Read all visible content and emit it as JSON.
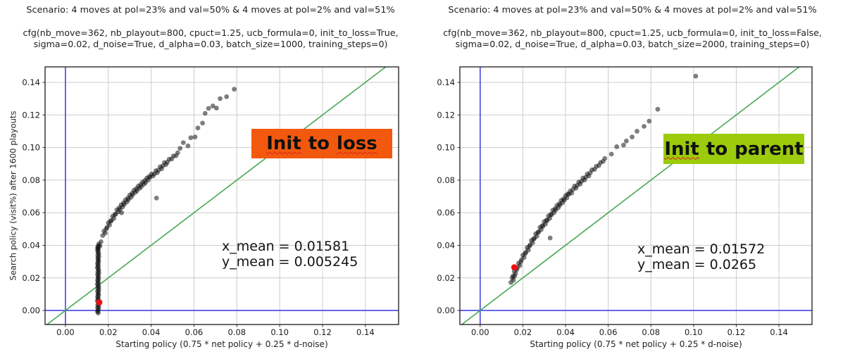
{
  "colors": {
    "background": "#ffffff",
    "grid": "#cccccc",
    "frame": "#2a2a2a",
    "axis_zero_blue": "#4545e0",
    "identity_green": "#46aa50",
    "point_black": "#141414",
    "highlight_red": "#f20d0d",
    "annotation_orange": "#f2590e",
    "annotation_green": "#9bcb0a",
    "squiggle_red": "#e02020"
  },
  "chart_data": [
    {
      "type": "scatter",
      "title": "Scenario: 4 moves at pol=23% and val=50% & 4 moves at pol=2% and val=51%",
      "cfg_lines": [
        "cfg(nb_move=362, nb_playout=800, cpuct=1.25, ucb_formula=0, init_to_loss=True,",
        "sigma=0.02, d_noise=True, d_alpha=0.03, batch_size=1000, training_steps=0)"
      ],
      "xlabel": "Starting policy (0.75 * net policy + 0.25 * d-noise)",
      "ylabel": "Search policy (visit%) after 1600 playouts",
      "xlim": [
        -0.0095,
        0.1555
      ],
      "ylim": [
        -0.0086,
        0.1495
      ],
      "tick_values": [
        0.0,
        0.02,
        0.04,
        0.06,
        0.08,
        0.1,
        0.12,
        0.14
      ],
      "tick_labels": [
        "0.00",
        "0.02",
        "0.04",
        "0.06",
        "0.08",
        "0.10",
        "0.12",
        "0.14"
      ],
      "grid": true,
      "zero_lines": true,
      "identity_line": true,
      "annotation": {
        "bg": "#f2590e",
        "words": [
          {
            "t": "Init",
            "squiggle": true
          },
          {
            "t": "to",
            "squiggle": false
          },
          {
            "t": "loss",
            "squiggle": true
          }
        ]
      },
      "stats_lines": [
        "x_mean = 0.01581",
        "y_mean = 0.005245"
      ],
      "x_mean": 0.01581,
      "y_mean": 0.005245,
      "red_point": [
        0.0158,
        0.005
      ],
      "points": [
        [
          0.0152,
          0.0
        ],
        [
          0.0154,
          0.0009
        ],
        [
          0.015,
          0.0017
        ],
        [
          0.0156,
          0.0026
        ],
        [
          0.0151,
          0.0034
        ],
        [
          0.0155,
          0.0043
        ],
        [
          0.0153,
          0.0051
        ],
        [
          0.0149,
          0.006
        ],
        [
          0.0154,
          0.0068
        ],
        [
          0.0152,
          0.0077
        ],
        [
          0.015,
          0.0085
        ],
        [
          0.0155,
          0.0094
        ],
        [
          0.0152,
          0.0102
        ],
        [
          0.0154,
          0.0111
        ],
        [
          0.015,
          0.0119
        ],
        [
          0.0156,
          0.0128
        ],
        [
          0.0151,
          0.0136
        ],
        [
          0.0155,
          0.0145
        ],
        [
          0.0153,
          0.0153
        ],
        [
          0.0149,
          0.0162
        ],
        [
          0.0154,
          0.017
        ],
        [
          0.0152,
          0.0179
        ],
        [
          0.015,
          0.0187
        ],
        [
          0.0155,
          0.0196
        ],
        [
          0.0152,
          0.0204
        ],
        [
          0.0154,
          0.0213
        ],
        [
          0.015,
          0.0221
        ],
        [
          0.0156,
          0.023
        ],
        [
          0.0151,
          0.0238
        ],
        [
          0.0155,
          0.0247
        ],
        [
          0.0153,
          0.0255
        ],
        [
          0.0149,
          0.0264
        ],
        [
          0.0154,
          0.0272
        ],
        [
          0.0152,
          0.0281
        ],
        [
          0.015,
          0.0289
        ],
        [
          0.0155,
          0.0298
        ],
        [
          0.0152,
          0.0306
        ],
        [
          0.0154,
          0.0315
        ],
        [
          0.0151,
          0.0323
        ],
        [
          0.0156,
          0.0332
        ],
        [
          0.0151,
          0.034
        ],
        [
          0.0155,
          0.0349
        ],
        [
          0.0153,
          0.0357
        ],
        [
          0.015,
          0.0366
        ],
        [
          0.0154,
          0.0374
        ],
        [
          0.0152,
          0.0383
        ],
        [
          0.0151,
          0.0391
        ],
        [
          0.0155,
          0.0399
        ],
        [
          0.0153,
          -0.0015
        ],
        [
          0.015,
          -0.0007
        ],
        [
          0.015,
          0.038
        ],
        [
          0.0156,
          0.0408
        ],
        [
          0.0161,
          0.0395
        ],
        [
          0.0166,
          0.0422
        ],
        [
          0.0174,
          0.046
        ],
        [
          0.018,
          0.0488
        ],
        [
          0.0186,
          0.0475
        ],
        [
          0.0191,
          0.0502
        ],
        [
          0.0194,
          0.051
        ],
        [
          0.02,
          0.0538
        ],
        [
          0.0206,
          0.0525
        ],
        [
          0.0211,
          0.055
        ],
        [
          0.0214,
          0.055
        ],
        [
          0.022,
          0.0578
        ],
        [
          0.0226,
          0.0565
        ],
        [
          0.0231,
          0.059
        ],
        [
          0.0234,
          0.059
        ],
        [
          0.024,
          0.0618
        ],
        [
          0.0246,
          0.0605
        ],
        [
          0.0251,
          0.063
        ],
        [
          0.0254,
          0.062
        ],
        [
          0.026,
          0.0648
        ],
        [
          0.0266,
          0.0635
        ],
        [
          0.0271,
          0.066
        ],
        [
          0.0274,
          0.065
        ],
        [
          0.028,
          0.0678
        ],
        [
          0.0286,
          0.0665
        ],
        [
          0.0291,
          0.069
        ],
        [
          0.0294,
          0.068
        ],
        [
          0.03,
          0.0708
        ],
        [
          0.0306,
          0.0695
        ],
        [
          0.0311,
          0.072
        ],
        [
          0.0314,
          0.071
        ],
        [
          0.032,
          0.0738
        ],
        [
          0.0326,
          0.0725
        ],
        [
          0.0331,
          0.0748
        ],
        [
          0.0334,
          0.0735
        ],
        [
          0.034,
          0.0763
        ],
        [
          0.0346,
          0.075
        ],
        [
          0.0351,
          0.0773
        ],
        [
          0.0354,
          0.076
        ],
        [
          0.036,
          0.0788
        ],
        [
          0.0366,
          0.0775
        ],
        [
          0.0371,
          0.0798
        ],
        [
          0.0374,
          0.0785
        ],
        [
          0.038,
          0.0813
        ],
        [
          0.0386,
          0.08
        ],
        [
          0.0391,
          0.0822
        ],
        [
          0.0395,
          0.0818
        ],
        [
          0.0402,
          0.0838
        ],
        [
          0.0409,
          0.0826
        ],
        [
          0.0415,
          0.0838
        ],
        [
          0.0422,
          0.0858
        ],
        [
          0.0429,
          0.0846
        ],
        [
          0.0435,
          0.0862
        ],
        [
          0.0442,
          0.0882
        ],
        [
          0.0449,
          0.087
        ],
        [
          0.0455,
          0.0888
        ],
        [
          0.0462,
          0.0908
        ],
        [
          0.0469,
          0.0895
        ],
        [
          0.0476,
          0.091
        ],
        [
          0.0484,
          0.0928
        ],
        [
          0.0496,
          0.093
        ],
        [
          0.0504,
          0.0948
        ],
        [
          0.0516,
          0.095
        ],
        [
          0.0524,
          0.0968
        ],
        [
          0.0535,
          0.0995
        ],
        [
          0.055,
          0.103
        ],
        [
          0.0572,
          0.101
        ],
        [
          0.0585,
          0.106
        ],
        [
          0.0605,
          0.1065
        ],
        [
          0.0618,
          0.112
        ],
        [
          0.064,
          0.115
        ],
        [
          0.0652,
          0.121
        ],
        [
          0.0668,
          0.124
        ],
        [
          0.0688,
          0.1255
        ],
        [
          0.0705,
          0.1242
        ],
        [
          0.0722,
          0.13
        ],
        [
          0.0752,
          0.1312
        ],
        [
          0.0788,
          0.1358
        ],
        [
          0.0425,
          0.069
        ],
        [
          0.0262,
          0.06
        ]
      ]
    },
    {
      "type": "scatter",
      "title": "Scenario: 4 moves at pol=23% and val=50% & 4 moves at pol=2% and val=51%",
      "cfg_lines": [
        "cfg(nb_move=362, nb_playout=800, cpuct=1.25, ucb_formula=0, init_to_loss=False,",
        "sigma=0.02, d_noise=True, d_alpha=0.03, batch_size=2000, training_steps=0)"
      ],
      "xlabel": "Starting policy (0.75 * net policy + 0.25 * d-noise)",
      "ylabel": "Search policy (visit%) after 1600 playouts",
      "xlim": [
        -0.0095,
        0.1555
      ],
      "ylim": [
        -0.0086,
        0.1495
      ],
      "tick_values": [
        0.0,
        0.02,
        0.04,
        0.06,
        0.08,
        0.1,
        0.12,
        0.14
      ],
      "tick_labels": [
        "0.00",
        "0.02",
        "0.04",
        "0.06",
        "0.08",
        "0.10",
        "0.12",
        "0.14"
      ],
      "grid": true,
      "zero_lines": true,
      "identity_line": true,
      "annotation": {
        "bg": "#9bcb0a",
        "words": [
          {
            "t": "Init",
            "squiggle": true
          },
          {
            "t": "to",
            "squiggle": false
          },
          {
            "t": "parent",
            "squiggle": false
          }
        ]
      },
      "stats_lines": [
        "x_mean = 0.01572",
        "y_mean = 0.0265"
      ],
      "x_mean": 0.01572,
      "y_mean": 0.0265,
      "red_point": [
        0.016,
        0.0265
      ],
      "points": [
        [
          0.0144,
          0.0172
        ],
        [
          0.015,
          0.02
        ],
        [
          0.0156,
          0.0186
        ],
        [
          0.0161,
          0.021
        ],
        [
          0.0154,
          0.0212
        ],
        [
          0.016,
          0.024
        ],
        [
          0.0166,
          0.0226
        ],
        [
          0.0171,
          0.025
        ],
        [
          0.0174,
          0.0262
        ],
        [
          0.018,
          0.029
        ],
        [
          0.0186,
          0.0276
        ],
        [
          0.0191,
          0.03
        ],
        [
          0.0194,
          0.0312
        ],
        [
          0.02,
          0.034
        ],
        [
          0.0206,
          0.0326
        ],
        [
          0.0211,
          0.035
        ],
        [
          0.0214,
          0.0357
        ],
        [
          0.022,
          0.0385
        ],
        [
          0.0226,
          0.0371
        ],
        [
          0.0231,
          0.0395
        ],
        [
          0.0234,
          0.0402
        ],
        [
          0.024,
          0.043
        ],
        [
          0.0246,
          0.0416
        ],
        [
          0.0251,
          0.044
        ],
        [
          0.0254,
          0.0442
        ],
        [
          0.026,
          0.047
        ],
        [
          0.0266,
          0.0456
        ],
        [
          0.0271,
          0.048
        ],
        [
          0.0274,
          0.0482
        ],
        [
          0.028,
          0.051
        ],
        [
          0.0286,
          0.0496
        ],
        [
          0.0291,
          0.052
        ],
        [
          0.0294,
          0.0517
        ],
        [
          0.03,
          0.0545
        ],
        [
          0.0306,
          0.0531
        ],
        [
          0.0311,
          0.0555
        ],
        [
          0.0314,
          0.0552
        ],
        [
          0.032,
          0.058
        ],
        [
          0.0326,
          0.0566
        ],
        [
          0.0331,
          0.059
        ],
        [
          0.0334,
          0.0587
        ],
        [
          0.034,
          0.0615
        ],
        [
          0.0346,
          0.0601
        ],
        [
          0.0351,
          0.0625
        ],
        [
          0.0354,
          0.0617
        ],
        [
          0.036,
          0.0645
        ],
        [
          0.0366,
          0.0631
        ],
        [
          0.0371,
          0.0655
        ],
        [
          0.0374,
          0.0647
        ],
        [
          0.038,
          0.0675
        ],
        [
          0.0386,
          0.0661
        ],
        [
          0.0391,
          0.0685
        ],
        [
          0.0394,
          0.0677
        ],
        [
          0.04,
          0.0705
        ],
        [
          0.0406,
          0.0691
        ],
        [
          0.0411,
          0.0715
        ],
        [
          0.0415,
          0.0713
        ],
        [
          0.0422,
          0.0733
        ],
        [
          0.0429,
          0.0721
        ],
        [
          0.0435,
          0.0743
        ],
        [
          0.0442,
          0.0763
        ],
        [
          0.0449,
          0.0751
        ],
        [
          0.0455,
          0.0768
        ],
        [
          0.0462,
          0.0788
        ],
        [
          0.0469,
          0.0776
        ],
        [
          0.0475,
          0.0793
        ],
        [
          0.0482,
          0.0813
        ],
        [
          0.0489,
          0.0801
        ],
        [
          0.0495,
          0.0818
        ],
        [
          0.0502,
          0.0838
        ],
        [
          0.0509,
          0.0826
        ],
        [
          0.0516,
          0.0845
        ],
        [
          0.0524,
          0.0863
        ],
        [
          0.0536,
          0.0866
        ],
        [
          0.0544,
          0.0884
        ],
        [
          0.0556,
          0.089
        ],
        [
          0.0564,
          0.0908
        ],
        [
          0.0576,
          0.0915
        ],
        [
          0.0584,
          0.0933
        ],
        [
          0.0615,
          0.096
        ],
        [
          0.064,
          0.1005
        ],
        [
          0.0672,
          0.1015
        ],
        [
          0.0685,
          0.104
        ],
        [
          0.0712,
          0.1065
        ],
        [
          0.0735,
          0.11
        ],
        [
          0.0768,
          0.113
        ],
        [
          0.0792,
          0.1162
        ],
        [
          0.0832,
          0.1235
        ],
        [
          0.101,
          0.1438
        ],
        [
          0.0328,
          0.0445
        ]
      ]
    }
  ]
}
